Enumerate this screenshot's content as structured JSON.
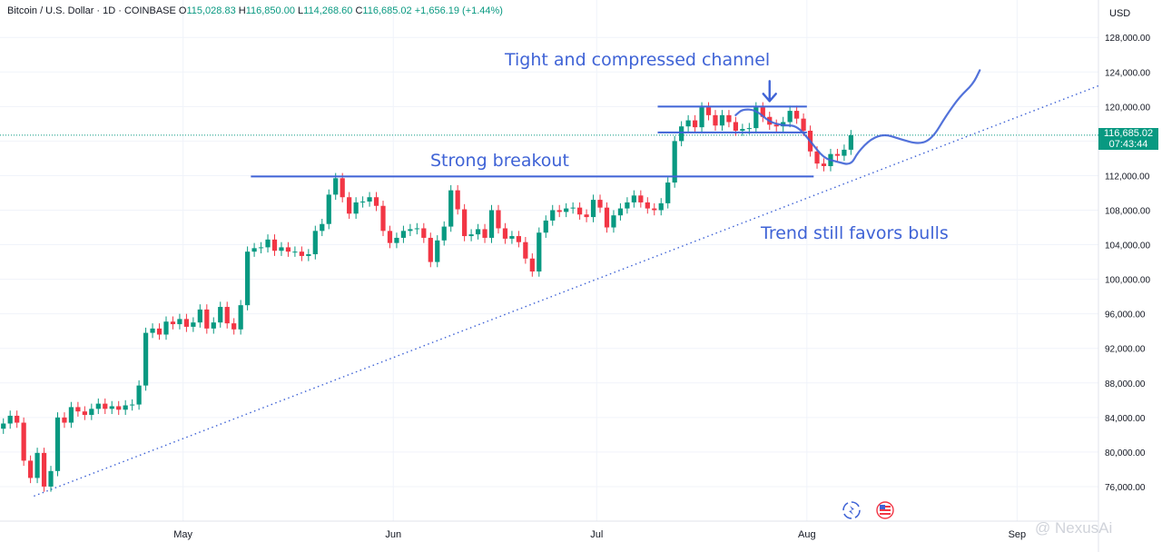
{
  "header": {
    "symbol": "Bitcoin / U.S. Dollar · 1D · COINBASE",
    "o_label": "O",
    "o_value": "115,028.83",
    "h_label": "H",
    "h_value": "116,850.00",
    "l_label": "L",
    "l_value": "114,268.60",
    "c_label": "C",
    "c_value": "116,685.02",
    "change": "+1,656.19 (+1.44%)"
  },
  "price_axis": {
    "currency": "USD",
    "last_price": "116,685.02",
    "countdown": "07:43:44"
  },
  "watermark": "@ NexusAi",
  "colors": {
    "up": "#089981",
    "down": "#f23645",
    "annotation": "#3f63d6",
    "trendline": "#3f63d6"
  },
  "annotations": {
    "channel": "Tight and compressed channel",
    "breakout": "Strong breakout",
    "trend": "Trend still favors bulls"
  },
  "icons": [
    "replay-icon",
    "us-flag-icon"
  ],
  "chart_data": {
    "type": "candlestick",
    "title": "Bitcoin / U.S. Dollar · 1D · COINBASE",
    "ylim": [
      72000,
      129600
    ],
    "yticks": [
      76000,
      80000,
      84000,
      88000,
      92000,
      96000,
      100000,
      104000,
      108000,
      112000,
      116000,
      120000,
      124000,
      128000
    ],
    "ytick_labels": [
      "76,000.00",
      "80,000.00",
      "84,000.00",
      "88,000.00",
      "92,000.00",
      "96,000.00",
      "100,000.00",
      "104,000.00",
      "108,000.00",
      "112,000.00",
      "116,000.00",
      "120,000.00",
      "124,000.00",
      "128,000.00"
    ],
    "x_range": [
      "2025-04-04",
      "2025-09-13"
    ],
    "xticks": [
      {
        "date": "2025-05-01",
        "label": "May"
      },
      {
        "date": "2025-06-01",
        "label": "Jun"
      },
      {
        "date": "2025-07-01",
        "label": "Jul"
      },
      {
        "date": "2025-08-01",
        "label": "Aug"
      },
      {
        "date": "2025-09-01",
        "label": "Sep"
      }
    ],
    "start_date": "2025-04-04",
    "candle_days": 126,
    "closes": [
      83300,
      84200,
      83400,
      79000,
      77000,
      79900,
      76000,
      77800,
      84000,
      83400,
      85200,
      84700,
      84300,
      85000,
      85600,
      85000,
      85300,
      84900,
      85400,
      85500,
      87700,
      93800,
      94300,
      93600,
      95100,
      94800,
      95400,
      94500,
      95000,
      96500,
      94300,
      95000,
      96800,
      94900,
      94200,
      97000,
      103200,
      103600,
      103700,
      104600,
      103300,
      103700,
      103200,
      103200,
      102700,
      102900,
      105600,
      106400,
      109800,
      111700,
      109500,
      107600,
      108900,
      109000,
      109500,
      108500,
      105600,
      104200,
      104800,
      105600,
      105800,
      105900,
      104800,
      102000,
      104500,
      106100,
      110300,
      108100,
      105000,
      105200,
      105800,
      104800,
      108000,
      105900,
      104700,
      105000,
      104300,
      102400,
      100900,
      105400,
      106800,
      108000,
      107800,
      108200,
      108300,
      107500,
      107200,
      109200,
      108300,
      106000,
      107400,
      108200,
      108900,
      109700,
      108900,
      108200,
      108000,
      108800,
      111200,
      116000,
      117700,
      118400,
      117600,
      119900,
      119000,
      117800,
      119000,
      118200,
      117200,
      117400,
      117500,
      119900,
      118800,
      117900,
      117700,
      118200,
      119500,
      118600,
      117200,
      114800,
      113400,
      113100,
      114500,
      114300,
      115000,
      116685
    ],
    "last_price": 116685,
    "series": [
      {
        "name": "Strong breakout",
        "type": "hline",
        "from": "2025-05-11",
        "to": "2025-08-02",
        "value": 111900
      },
      {
        "name": "Tight and compressed channel",
        "type": "channel",
        "from": "2025-07-10",
        "to": "2025-08-01",
        "upper": 120000,
        "lower": 117000
      },
      {
        "name": "Trend still favors bulls",
        "type": "trendline",
        "from": "2025-04-09",
        "from_value": 74900,
        "to": "2025-09-13",
        "to_value": 122400
      },
      {
        "name": "Projected path",
        "type": "projection",
        "dates": [
          "2025-07-21",
          "2025-07-22",
          "2025-07-24",
          "2025-07-26",
          "2025-07-28",
          "2025-07-30",
          "2025-08-01",
          "2025-08-03",
          "2025-08-05",
          "2025-08-07",
          "2025-08-08",
          "2025-08-10",
          "2025-08-12",
          "2025-08-14",
          "2025-08-17",
          "2025-08-19",
          "2025-08-21",
          "2025-08-23",
          "2025-08-25",
          "2025-08-26"
        ],
        "values": [
          119000,
          119700,
          119600,
          118200,
          117800,
          117800,
          116000,
          114000,
          113600,
          113200,
          114700,
          116300,
          116800,
          116300,
          115600,
          116300,
          118900,
          121100,
          122600,
          124200
        ]
      }
    ]
  }
}
